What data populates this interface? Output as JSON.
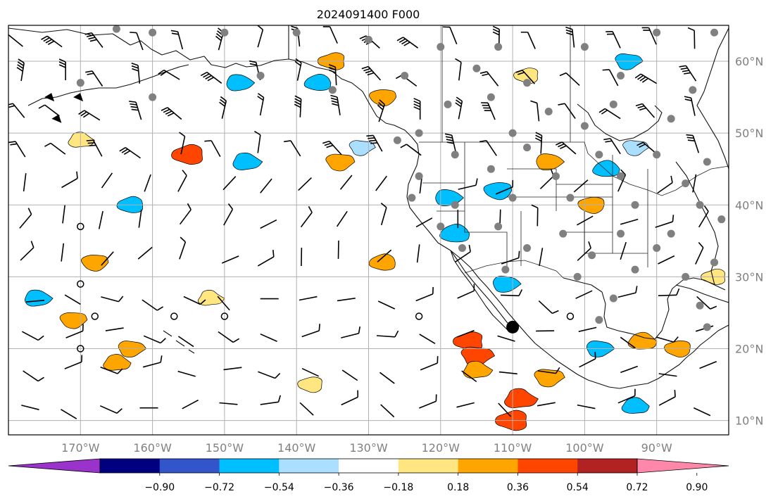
{
  "title": "2024091400 F000",
  "map": {
    "lon_range": [
      -180,
      -80
    ],
    "lat_range": [
      8,
      65
    ],
    "lon_ticks": [
      {
        "value": -170,
        "label": "170°W"
      },
      {
        "value": -160,
        "label": "160°W"
      },
      {
        "value": -150,
        "label": "150°W"
      },
      {
        "value": -140,
        "label": "140°W"
      },
      {
        "value": -130,
        "label": "130°W"
      },
      {
        "value": -120,
        "label": "120°W"
      },
      {
        "value": -110,
        "label": "110°W"
      },
      {
        "value": -100,
        "label": "100°W"
      },
      {
        "value": -90,
        "label": "90°W"
      }
    ],
    "lat_ticks": [
      {
        "value": 60,
        "label": "60°N"
      },
      {
        "value": 50,
        "label": "50°N"
      },
      {
        "value": 40,
        "label": "40°N"
      },
      {
        "value": 30,
        "label": "30°N"
      },
      {
        "value": 20,
        "label": "20°N"
      },
      {
        "value": 10,
        "label": "10°N"
      }
    ],
    "highlight_point": {
      "lon": -110,
      "lat": 23
    }
  },
  "colorbar": {
    "colors": [
      "#9933cc",
      "#000080",
      "#3355cc",
      "#00bfff",
      "#aadfff",
      "#ffffff",
      "#ffe680",
      "#ffa500",
      "#ff4500",
      "#b22222",
      "#ff88aa"
    ],
    "tick_labels": [
      "−0.90",
      "−0.72",
      "−0.54",
      "−0.36",
      "−0.18",
      "0.18",
      "0.36",
      "0.54",
      "0.72",
      "0.90"
    ]
  },
  "contour_patches": [
    {
      "lon": -116,
      "lat": 21,
      "value": 0.55
    },
    {
      "lon": -115,
      "lat": 19,
      "value": 0.6
    },
    {
      "lon": -109,
      "lat": 13,
      "value": 0.6
    },
    {
      "lon": -110,
      "lat": 10,
      "value": 0.62
    },
    {
      "lon": -105,
      "lat": 16,
      "value": 0.5
    },
    {
      "lon": -115,
      "lat": 17,
      "value": 0.45
    },
    {
      "lon": -155,
      "lat": 47,
      "value": 0.6
    },
    {
      "lon": -134,
      "lat": 46,
      "value": 0.45
    },
    {
      "lon": -147,
      "lat": 46,
      "value": -0.45
    },
    {
      "lon": -163,
      "lat": 40,
      "value": -0.4
    },
    {
      "lon": -171,
      "lat": 24,
      "value": 0.4
    },
    {
      "lon": -176,
      "lat": 27,
      "value": -0.4
    },
    {
      "lon": -128,
      "lat": 32,
      "value": 0.4
    },
    {
      "lon": -168,
      "lat": 32,
      "value": 0.4
    },
    {
      "lon": -148,
      "lat": 57,
      "value": -0.4
    },
    {
      "lon": -137,
      "lat": 57,
      "value": -0.4
    },
    {
      "lon": -128,
      "lat": 55,
      "value": 0.4
    },
    {
      "lon": -119,
      "lat": 41,
      "value": -0.4
    },
    {
      "lon": -118,
      "lat": 36,
      "value": -0.5
    },
    {
      "lon": -112,
      "lat": 42,
      "value": -0.45
    },
    {
      "lon": -105,
      "lat": 46,
      "value": 0.4
    },
    {
      "lon": -97,
      "lat": 45,
      "value": -0.4
    },
    {
      "lon": -99,
      "lat": 40,
      "value": 0.4
    },
    {
      "lon": -111,
      "lat": 29,
      "value": -0.4
    },
    {
      "lon": -92,
      "lat": 21,
      "value": 0.45
    },
    {
      "lon": -87,
      "lat": 20,
      "value": 0.4
    },
    {
      "lon": -98,
      "lat": 20,
      "value": -0.4
    },
    {
      "lon": -93,
      "lat": 12,
      "value": -0.4
    },
    {
      "lon": -138,
      "lat": 15,
      "value": 0.35
    },
    {
      "lon": -163,
      "lat": 20,
      "value": 0.4
    },
    {
      "lon": -165,
      "lat": 18,
      "value": 0.4
    },
    {
      "lon": -108,
      "lat": 58,
      "value": 0.35
    },
    {
      "lon": -94,
      "lat": 60,
      "value": -0.4
    },
    {
      "lon": -170,
      "lat": 49,
      "value": 0.35
    },
    {
      "lon": -135,
      "lat": 60,
      "value": 0.45
    },
    {
      "lon": -131,
      "lat": 48,
      "value": -0.35
    },
    {
      "lon": -152,
      "lat": 27,
      "value": 0.35
    },
    {
      "lon": -82,
      "lat": 30,
      "value": 0.35
    },
    {
      "lon": -93,
      "lat": 48,
      "value": -0.35
    }
  ],
  "stations": [
    [
      -165,
      64.5
    ],
    [
      -160,
      64
    ],
    [
      -150,
      64
    ],
    [
      -140,
      64
    ],
    [
      -130,
      63
    ],
    [
      -120,
      62
    ],
    [
      -112,
      62
    ],
    [
      -100,
      62
    ],
    [
      -90,
      64
    ],
    [
      -82,
      64
    ],
    [
      -170,
      57
    ],
    [
      -160,
      55
    ],
    [
      -145,
      58
    ],
    [
      -135,
      56
    ],
    [
      -125,
      58
    ],
    [
      -115,
      59
    ],
    [
      -108,
      57
    ],
    [
      -95,
      58
    ],
    [
      -85,
      56
    ],
    [
      -119,
      54
    ],
    [
      -113,
      55
    ],
    [
      -105,
      53
    ],
    [
      -96,
      54
    ],
    [
      -88,
      52
    ],
    [
      -123,
      50
    ],
    [
      -110,
      50
    ],
    [
      -100,
      51
    ],
    [
      -126,
      49
    ],
    [
      -118,
      47
    ],
    [
      -108,
      48
    ],
    [
      -98,
      47
    ],
    [
      -90,
      47
    ],
    [
      -83,
      46
    ],
    [
      -123,
      44
    ],
    [
      -113,
      45
    ],
    [
      -104,
      44
    ],
    [
      -95,
      44
    ],
    [
      -86,
      43
    ],
    [
      -124,
      41
    ],
    [
      -118,
      40
    ],
    [
      -110,
      41
    ],
    [
      -102,
      41
    ],
    [
      -93,
      40
    ],
    [
      -84,
      40
    ],
    [
      -120,
      37
    ],
    [
      -112,
      37
    ],
    [
      -103,
      36
    ],
    [
      -95,
      36
    ],
    [
      -88,
      36
    ],
    [
      -81,
      38
    ],
    [
      -117,
      34
    ],
    [
      -108,
      34
    ],
    [
      -99,
      33
    ],
    [
      -90,
      34
    ],
    [
      -82,
      32
    ],
    [
      -111,
      31
    ],
    [
      -101,
      30
    ],
    [
      -93,
      31
    ],
    [
      -86,
      30
    ],
    [
      -96,
      27
    ],
    [
      -84,
      26
    ],
    [
      -98,
      24
    ],
    [
      -83,
      23
    ]
  ],
  "calm_points": [
    [
      -170,
      37
    ],
    [
      -170,
      29
    ],
    [
      -170,
      20
    ],
    [
      -168,
      24.5
    ],
    [
      -157,
      24.5
    ],
    [
      -150,
      24.5
    ],
    [
      -123,
      24.5
    ],
    [
      -102,
      24.5
    ]
  ],
  "pennant_points": [
    [
      -175,
      55
    ],
    [
      -171,
      55
    ],
    [
      -174,
      52
    ]
  ]
}
